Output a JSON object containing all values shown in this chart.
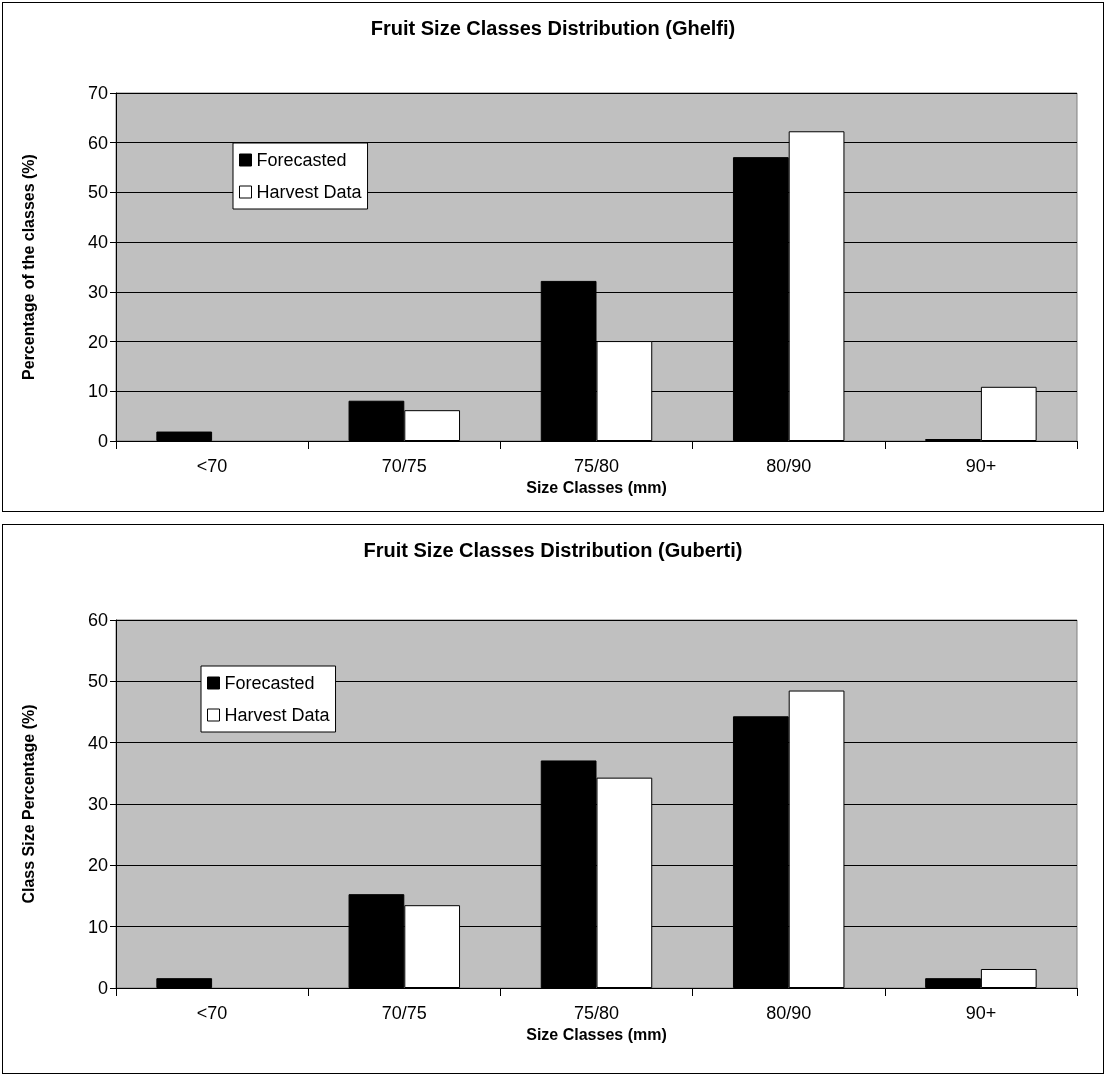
{
  "chart_data": [
    {
      "type": "bar",
      "title": "Fruit Size Classes Distribution (Ghelfi)",
      "xlabel": "Size Classes (mm)",
      "ylabel": "Percentage of the classes (%)",
      "categories": [
        "<70",
        "70/75",
        "75/80",
        "80/90",
        "90+"
      ],
      "series": [
        {
          "name": "Forecasted",
          "color": "#000000",
          "values": [
            1.9,
            8.1,
            32.2,
            57.1,
            0.4
          ]
        },
        {
          "name": "Harvest Data",
          "color": "#ffffff",
          "values": [
            null,
            6.2,
            20.1,
            62.3,
            10.9
          ]
        }
      ],
      "ylim": [
        0,
        70
      ],
      "yticks": [
        0,
        10,
        20,
        30,
        40,
        50,
        60,
        70
      ],
      "grid": "y",
      "legend": "top left"
    },
    {
      "type": "bar",
      "title": "Fruit Size Classes Distribution (Guberti)",
      "xlabel": "Size Classes (mm)",
      "ylabel": "Class Size Percentage (%)",
      "categories": [
        "<70",
        "70/75",
        "75/80",
        "80/90",
        "90+"
      ],
      "series": [
        {
          "name": "Forecasted",
          "color": "#000000",
          "values": [
            1.6,
            15.3,
            37.1,
            44.3,
            1.6
          ]
        },
        {
          "name": "Harvest Data",
          "color": "#ffffff",
          "values": [
            null,
            13.5,
            34.3,
            48.5,
            3.1
          ]
        }
      ],
      "ylim": [
        0,
        60
      ],
      "yticks": [
        0,
        10,
        20,
        30,
        40,
        50,
        60
      ],
      "grid": "y",
      "legend": "top left"
    }
  ]
}
